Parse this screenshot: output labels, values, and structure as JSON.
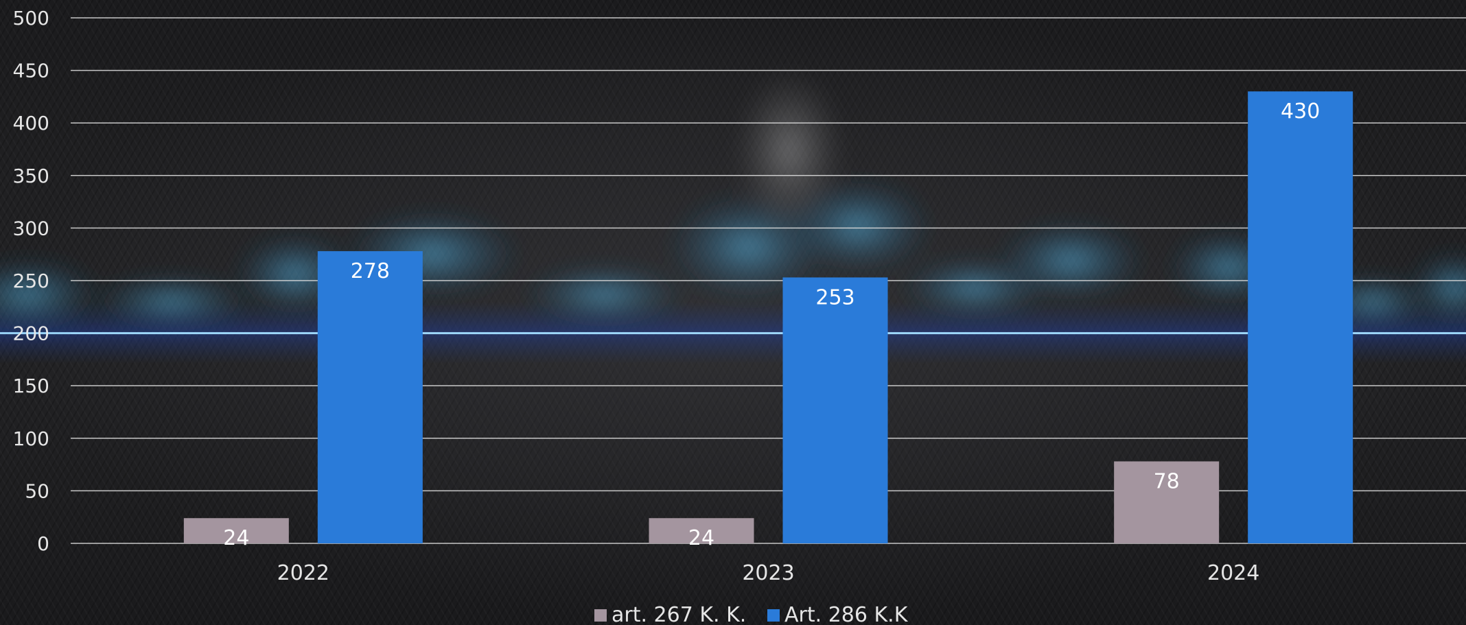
{
  "chart_data": {
    "type": "bar",
    "categories": [
      "2022",
      "2023",
      "2024"
    ],
    "series": [
      {
        "name": "art. 267 K. K.",
        "values": [
          24,
          24,
          78
        ],
        "color": "#a4959f"
      },
      {
        "name": "Art. 286 K.K",
        "values": [
          278,
          253,
          430
        ],
        "color": "#2a7bd9"
      }
    ],
    "title": "",
    "xlabel": "",
    "ylabel": "",
    "ylim": [
      0,
      500
    ],
    "yticks": [
      0,
      50,
      100,
      150,
      200,
      250,
      300,
      350,
      400,
      450,
      500
    ],
    "grid": true,
    "legend": "bottom-center",
    "data_labels": true,
    "colors": {
      "gridline": "#d9d9d9",
      "glow_line": "#4fb3ff",
      "smoke": "#3aa8e0"
    }
  }
}
